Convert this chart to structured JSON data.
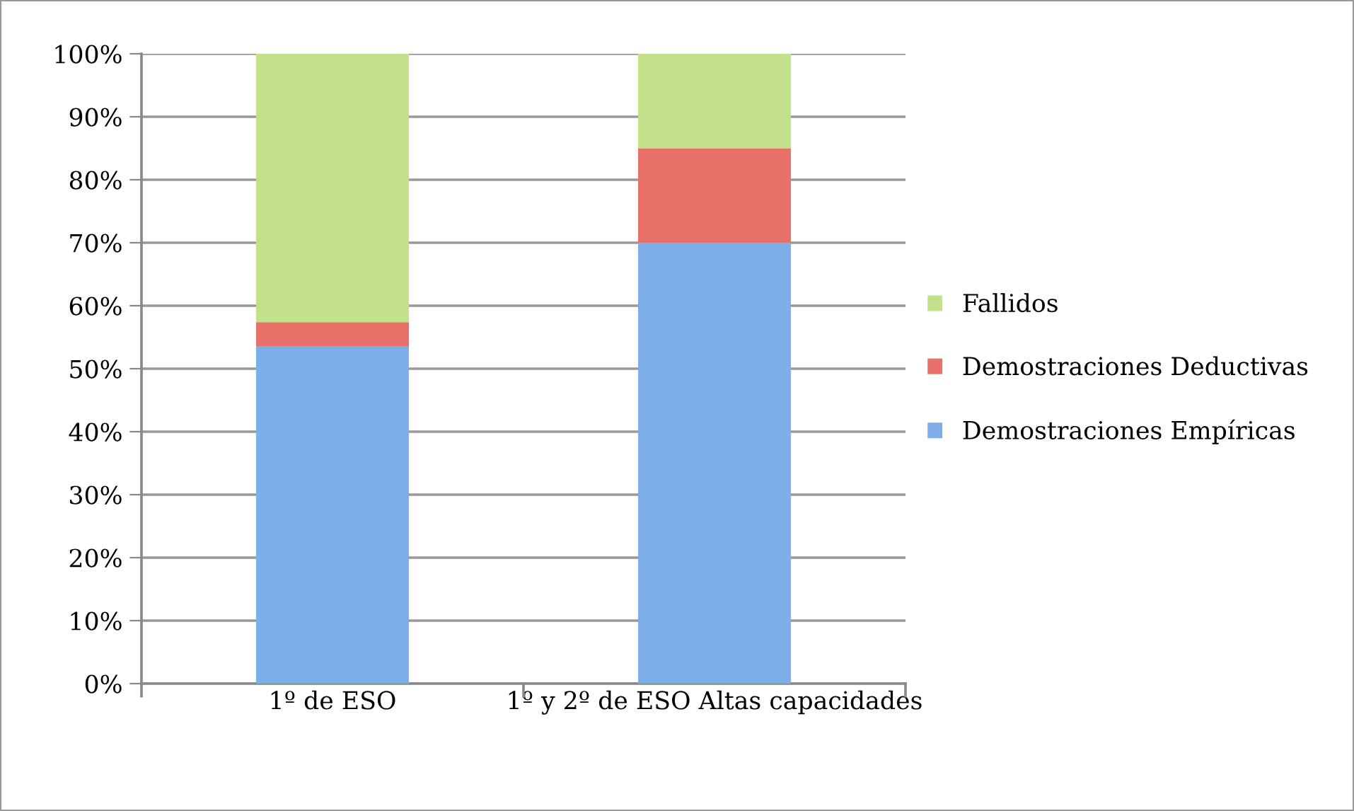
{
  "chart_data": {
    "type": "bar",
    "stacked": true,
    "categories": [
      "1º de ESO",
      "1º y 2º de ESO Altas capacidades"
    ],
    "series": [
      {
        "name": "Demostraciones Empíricas",
        "color": "#7eaee8",
        "values": [
          53.6,
          70
        ]
      },
      {
        "name": "Demostraciones Deductivas",
        "color": "#e8716a",
        "values": [
          3.8,
          15
        ]
      },
      {
        "name": "Fallidos",
        "color": "#c3e08a",
        "values": [
          42.6,
          15
        ]
      }
    ],
    "ylim": [
      0,
      100
    ],
    "yticks": [
      {
        "value": 0,
        "label": "0%"
      },
      {
        "value": 10,
        "label": "10%"
      },
      {
        "value": 20,
        "label": "20%"
      },
      {
        "value": 30,
        "label": "30%"
      },
      {
        "value": 40,
        "label": "40%"
      },
      {
        "value": 50,
        "label": "50%"
      },
      {
        "value": 60,
        "label": "60%"
      },
      {
        "value": 70,
        "label": "70%"
      },
      {
        "value": 80,
        "label": "80%"
      },
      {
        "value": 90,
        "label": "90%"
      },
      {
        "value": 100,
        "label": "100%"
      }
    ],
    "grid": "y",
    "legend": "right"
  }
}
